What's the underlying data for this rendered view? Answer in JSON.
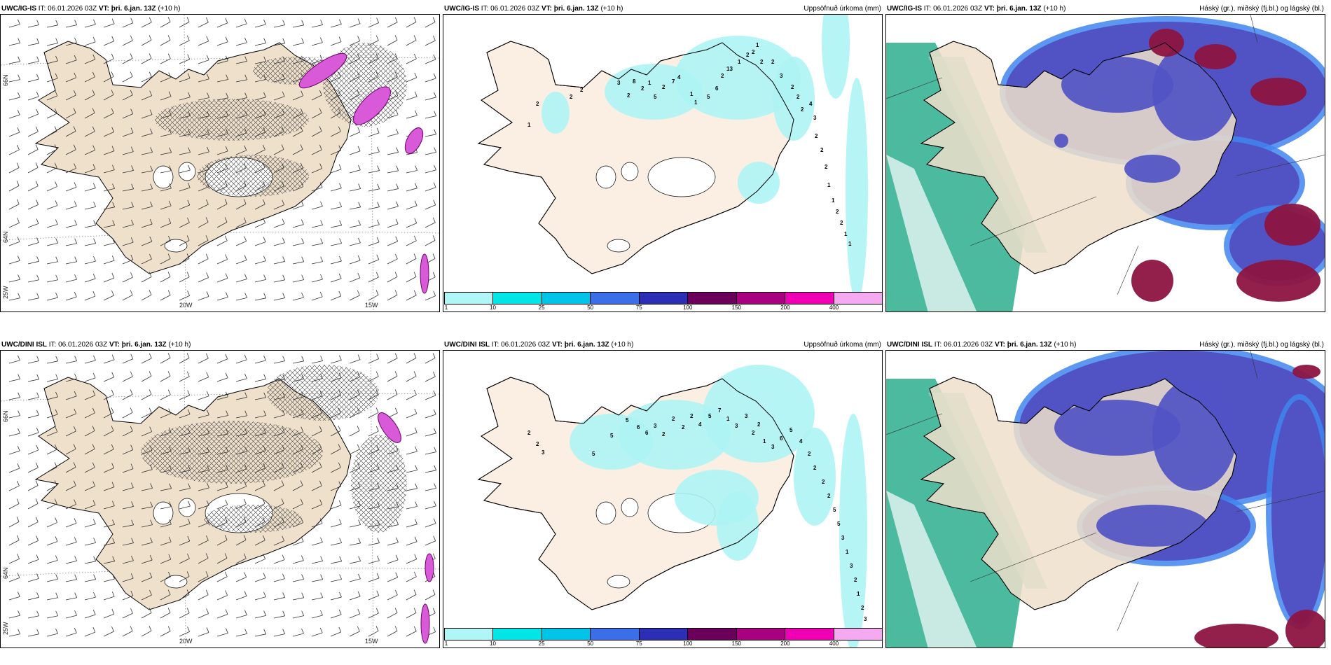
{
  "runs": [
    {
      "model_bold": "UWC/IG-IS",
      "it_text": "IT: 06.01.2026 03Z",
      "vt_bold": "VT: þri. 6.jan. 13Z",
      "lead": "(+10 h)"
    },
    {
      "model_bold": "UWC/DINI ISL",
      "it_text": "IT: 06.01.2026 03Z",
      "vt_bold": "VT: þri. 6.jan. 13Z",
      "lead": "(+10 h)"
    }
  ],
  "precip_title": "Uppsöfnuð úrkoma (mm)",
  "cloud_title": "Háský (gr.), miðský (fj.bl.) og lágský (bl.)",
  "wind_axis_labels": {
    "lon_20": "20W",
    "lon_15": "15W",
    "lat_66": "66N",
    "lat_64": "64N",
    "lat_25": "25W"
  },
  "colorbar": {
    "ticks": [
      "1",
      "10",
      "25",
      "50",
      "75",
      "100",
      "150",
      "200",
      "400"
    ],
    "colors": [
      "#aff7f7",
      "#00e5e5",
      "#00c3e8",
      "#3a6fe8",
      "#2b2fb5",
      "#6b005a",
      "#a8007f",
      "#f000b5",
      "#f5a9f0"
    ]
  },
  "precip_labels_top": [
    "2",
    "1",
    "2",
    "2",
    "3",
    "2",
    "8",
    "2",
    "1",
    "5",
    "2",
    "7",
    "4",
    "1",
    "1",
    "5",
    "6",
    "2",
    "13",
    "1",
    "2",
    "2",
    "1",
    "2",
    "2",
    "3",
    "2",
    "2",
    "2",
    "4",
    "3",
    "2",
    "2",
    "2",
    "1",
    "1",
    "2",
    "2",
    "1",
    "1"
  ],
  "precip_labels_bottom": [
    "2",
    "2",
    "3",
    "5",
    "5",
    "5",
    "6",
    "6",
    "3",
    "2",
    "2",
    "2",
    "2",
    "4",
    "5",
    "7",
    "1",
    "3",
    "3",
    "2",
    "2",
    "1",
    "3",
    "6",
    "5",
    "4",
    "2",
    "2",
    "2",
    "2",
    "5",
    "5",
    "3",
    "1",
    "3",
    "2",
    "1",
    "2",
    "3"
  ],
  "colors": {
    "land": "#efe0cc",
    "land_precip": "#fbefe3",
    "cyan": "#aef4f4",
    "magenta": "#d85ad8",
    "high_cloud": "#5153c4",
    "mid_cloud": "#3f86ef",
    "low_cloud": "#0fa37f",
    "dark_red": "#8c1440"
  }
}
